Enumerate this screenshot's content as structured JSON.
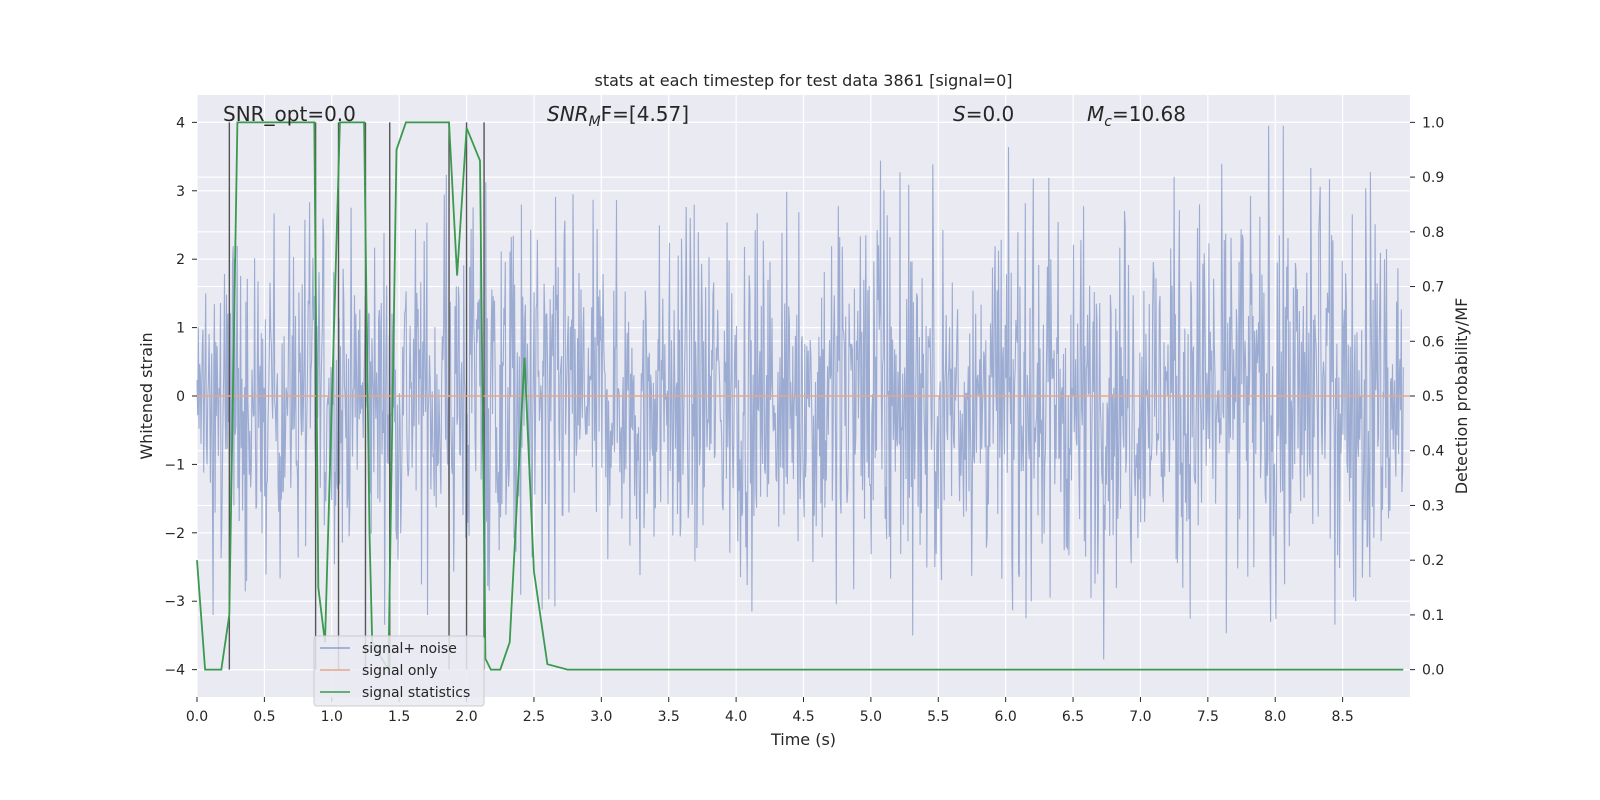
{
  "chart_data": {
    "type": "line",
    "title": "stats at each timestep for test data 3861 [signal=0]",
    "xlabel": "Time (s)",
    "ylabel_left": "Whitened strain",
    "ylabel_right": "Detection probability/MF",
    "xlim": [
      0,
      9.0
    ],
    "ylim_left": [
      -4.4,
      4.4
    ],
    "ylim_right": [
      -0.05,
      1.05
    ],
    "x_ticks": [
      0.0,
      0.5,
      1.0,
      1.5,
      2.0,
      2.5,
      3.0,
      3.5,
      4.0,
      4.5,
      5.0,
      5.5,
      6.0,
      6.5,
      7.0,
      7.5,
      8.0,
      8.5
    ],
    "x_tick_labels": [
      "0.0",
      "0.5",
      "1.0",
      "1.5",
      "2.0",
      "2.5",
      "3.0",
      "3.5",
      "4.0",
      "4.5",
      "5.0",
      "5.5",
      "6.0",
      "6.5",
      "7.0",
      "7.5",
      "8.0",
      "8.5"
    ],
    "y_left_ticks": [
      -4,
      -3,
      -2,
      -1,
      0,
      1,
      2,
      3,
      4
    ],
    "y_left_tick_labels": [
      "−4",
      "−3",
      "−2",
      "−1",
      "0",
      "1",
      "2",
      "3",
      "4"
    ],
    "y_right_ticks": [
      0.0,
      0.1,
      0.2,
      0.3,
      0.4,
      0.5,
      0.6,
      0.7,
      0.8,
      0.9,
      1.0
    ],
    "y_right_tick_labels": [
      "0.0",
      "0.1",
      "0.2",
      "0.3",
      "0.4",
      "0.5",
      "0.6",
      "0.7",
      "0.8",
      "0.9",
      "1.0"
    ],
    "grid": true,
    "legend_position": "lower-left",
    "annotations": {
      "snr_opt": "SNR_opt=0.0",
      "snr_mf_italic": "SNR",
      "snr_mf_sub": "M",
      "snr_mf_rest": "F=[4.57]",
      "s_italic": "S",
      "s_rest": "=0.0",
      "mc_italic": "M",
      "mc_sub": "c",
      "mc_rest": "=10.68"
    },
    "series": [
      {
        "name": "signal+ noise",
        "color": "#8da0cb",
        "axis": "left",
        "description_values": "whitened noise trace spanning approx -4 to 4",
        "envelope_upper_x": [
          0.0,
          0.5,
          1.0,
          1.5,
          2.0,
          2.5,
          3.0,
          3.5,
          4.0,
          4.5,
          5.0,
          5.5,
          6.0,
          6.5,
          7.0,
          7.5,
          8.0,
          8.5,
          9.0
        ],
        "envelope_upper_y": [
          3.1,
          3.0,
          2.8,
          3.0,
          3.3,
          3.3,
          2.9,
          3.0,
          3.3,
          3.0,
          3.7,
          3.3,
          3.2,
          3.2,
          3.3,
          3.6,
          3.9,
          3.4,
          3.2
        ]
      },
      {
        "name": "signal only",
        "color": "#e5a68a",
        "axis": "left",
        "x": [
          0.0,
          9.0
        ],
        "y": [
          0.0,
          0.0
        ]
      },
      {
        "name": "signal statistics",
        "color": "#3a9a4e",
        "axis": "right",
        "x": [
          0.0,
          0.06,
          0.18,
          0.24,
          0.3,
          0.35,
          0.87,
          0.9,
          0.95,
          1.06,
          1.12,
          1.24,
          1.28,
          1.3,
          1.42,
          1.48,
          1.55,
          1.87,
          1.93,
          2.0,
          2.1,
          2.14,
          2.18,
          2.25,
          2.32,
          2.43,
          2.5,
          2.6,
          2.75,
          8.95
        ],
        "y": [
          0.2,
          0.0,
          0.0,
          0.1,
          1.0,
          1.0,
          1.0,
          0.15,
          0.05,
          1.0,
          1.0,
          1.0,
          0.25,
          0.05,
          0.0,
          0.95,
          1.0,
          1.0,
          0.72,
          0.99,
          0.93,
          0.02,
          0.0,
          0.0,
          0.05,
          0.57,
          0.18,
          0.01,
          0.0,
          0.0
        ]
      }
    ],
    "vertical_markers_x": [
      0.24,
      0.88,
      1.05,
      1.25,
      1.43,
      1.87,
      2.0,
      2.13
    ]
  }
}
